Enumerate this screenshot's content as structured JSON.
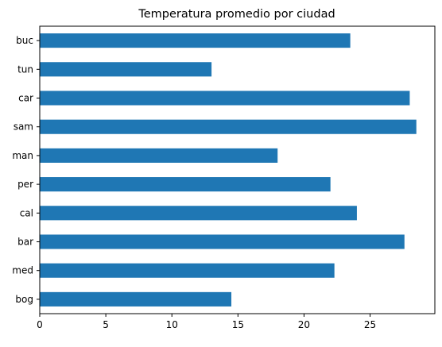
{
  "chart_data": {
    "type": "bar",
    "orientation": "horizontal",
    "title": "Temperatura promedio por ciudad",
    "xlabel": "",
    "ylabel": "",
    "categories": [
      "bog",
      "med",
      "bar",
      "cal",
      "per",
      "man",
      "sam",
      "car",
      "tun",
      "buc"
    ],
    "values": [
      14.5,
      22.3,
      27.6,
      24.0,
      22.0,
      18.0,
      28.5,
      28.0,
      13.0,
      23.5
    ],
    "xlim": [
      0,
      29.9
    ],
    "xticks": [
      0,
      5,
      10,
      15,
      20,
      25
    ],
    "grid": false,
    "bar_color": "#1f77b4"
  }
}
